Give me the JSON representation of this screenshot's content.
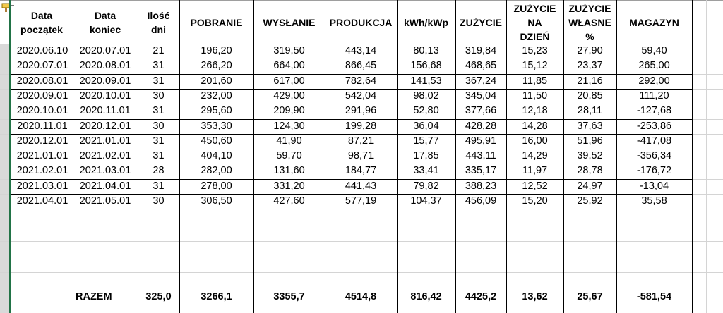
{
  "headers": {
    "data_poczatek": [
      "Data",
      "początek"
    ],
    "data_koniec": [
      "Data",
      "koniec"
    ],
    "ilosc_dni": [
      "Ilość",
      "dni"
    ],
    "pobranie": [
      "POBRANIE"
    ],
    "wyslanie": [
      "WYSŁANIE"
    ],
    "produkcja": [
      "PRODUKCJA"
    ],
    "kwh_kwp": [
      "kWh/kWp"
    ],
    "zuzycie": [
      "ZUŻYCIE"
    ],
    "zuzycie_na_dzien": [
      "ZUŻYCIE",
      "NA",
      "DZIEŃ"
    ],
    "zuzycie_wlasne": [
      "ZUŻYCIE",
      "WŁASNE",
      "%"
    ],
    "magazyn": [
      "MAGAZYN"
    ]
  },
  "rows": [
    [
      "2020.06.10",
      "2020.07.01",
      "21",
      "196,20",
      "319,50",
      "443,14",
      "80,13",
      "319,84",
      "15,23",
      "27,90",
      "59,40"
    ],
    [
      "2020.07.01",
      "2020.08.01",
      "31",
      "266,20",
      "664,00",
      "866,45",
      "156,68",
      "468,65",
      "15,12",
      "23,37",
      "265,00"
    ],
    [
      "2020.08.01",
      "2020.09.01",
      "31",
      "201,60",
      "617,00",
      "782,64",
      "141,53",
      "367,24",
      "11,85",
      "21,16",
      "292,00"
    ],
    [
      "2020.09.01",
      "2020.10.01",
      "30",
      "232,00",
      "429,00",
      "542,04",
      "98,02",
      "345,04",
      "11,50",
      "20,85",
      "111,20"
    ],
    [
      "2020.10.01",
      "2020.11.01",
      "31",
      "295,60",
      "209,90",
      "291,96",
      "52,80",
      "377,66",
      "12,18",
      "28,11",
      "-127,68"
    ],
    [
      "2020.11.01",
      "2020.12.01",
      "30",
      "353,30",
      "124,30",
      "199,28",
      "36,04",
      "428,28",
      "14,28",
      "37,63",
      "-253,86"
    ],
    [
      "2020.12.01",
      "2021.01.01",
      "31",
      "450,60",
      "41,90",
      "87,21",
      "15,77",
      "495,91",
      "16,00",
      "51,96",
      "-417,08"
    ],
    [
      "2021.01.01",
      "2021.02.01",
      "31",
      "404,10",
      "59,70",
      "98,71",
      "17,85",
      "443,11",
      "14,29",
      "39,52",
      "-356,34"
    ],
    [
      "2021.02.01",
      "2021.03.01",
      "28",
      "282,00",
      "131,60",
      "184,77",
      "33,41",
      "335,17",
      "11,97",
      "28,78",
      "-176,72"
    ],
    [
      "2021.03.01",
      "2021.04.01",
      "31",
      "278,00",
      "331,20",
      "441,43",
      "79,82",
      "388,23",
      "12,52",
      "24,97",
      "-13,04"
    ],
    [
      "2021.04.01",
      "2021.05.01",
      "30",
      "306,50",
      "427,60",
      "577,19",
      "104,37",
      "456,09",
      "15,20",
      "25,92",
      "35,58"
    ]
  ],
  "totals": {
    "label": "RAZEM",
    "ilosc_dni": "325,0",
    "pobranie": "3266,1",
    "wyslanie": "3355,7",
    "produkcja": "4514,8",
    "kwh_kwp": "816,42",
    "zuzycie": "4425,2",
    "zuzycie_na_dzien": "13,62",
    "zuzycie_wlasne": "25,67",
    "magazyn": "-581,54"
  },
  "icons": {
    "format_painter": "paintbrush-icon"
  }
}
